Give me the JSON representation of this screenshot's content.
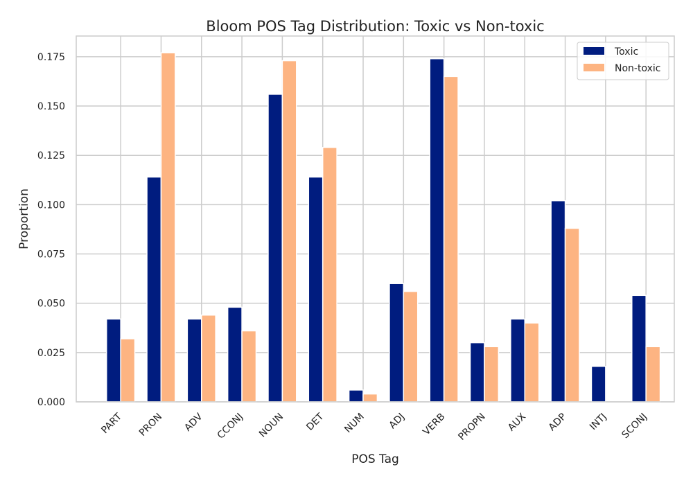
{
  "chart_data": {
    "type": "bar",
    "title": "Bloom POS Tag Distribution: Toxic vs Non-toxic",
    "xlabel": "POS Tag",
    "ylabel": "Proportion",
    "categories": [
      "PART",
      "PRON",
      "ADV",
      "CCONJ",
      "NOUN",
      "DET",
      "NUM",
      "ADJ",
      "VERB",
      "PROPN",
      "AUX",
      "ADP",
      "INTJ",
      "SCONJ"
    ],
    "series": [
      {
        "name": "Toxic",
        "color": "#001c7f",
        "values": [
          0.042,
          0.114,
          0.042,
          0.048,
          0.156,
          0.114,
          0.006,
          0.06,
          0.174,
          0.03,
          0.042,
          0.102,
          0.018,
          0.054
        ]
      },
      {
        "name": "Non-toxic",
        "color": "#fdb482",
        "values": [
          0.032,
          0.177,
          0.044,
          0.036,
          0.173,
          0.129,
          0.004,
          0.056,
          0.165,
          0.028,
          0.04,
          0.088,
          0.0,
          0.028
        ]
      }
    ],
    "ylim": [
      0,
      0.1855
    ],
    "yticks": [
      0.0,
      0.025,
      0.05,
      0.075,
      0.1,
      0.125,
      0.15,
      0.175
    ],
    "ytick_labels": [
      "0.000",
      "0.025",
      "0.050",
      "0.075",
      "0.100",
      "0.125",
      "0.150",
      "0.175"
    ],
    "grid": true,
    "legend_position": "top-right"
  }
}
